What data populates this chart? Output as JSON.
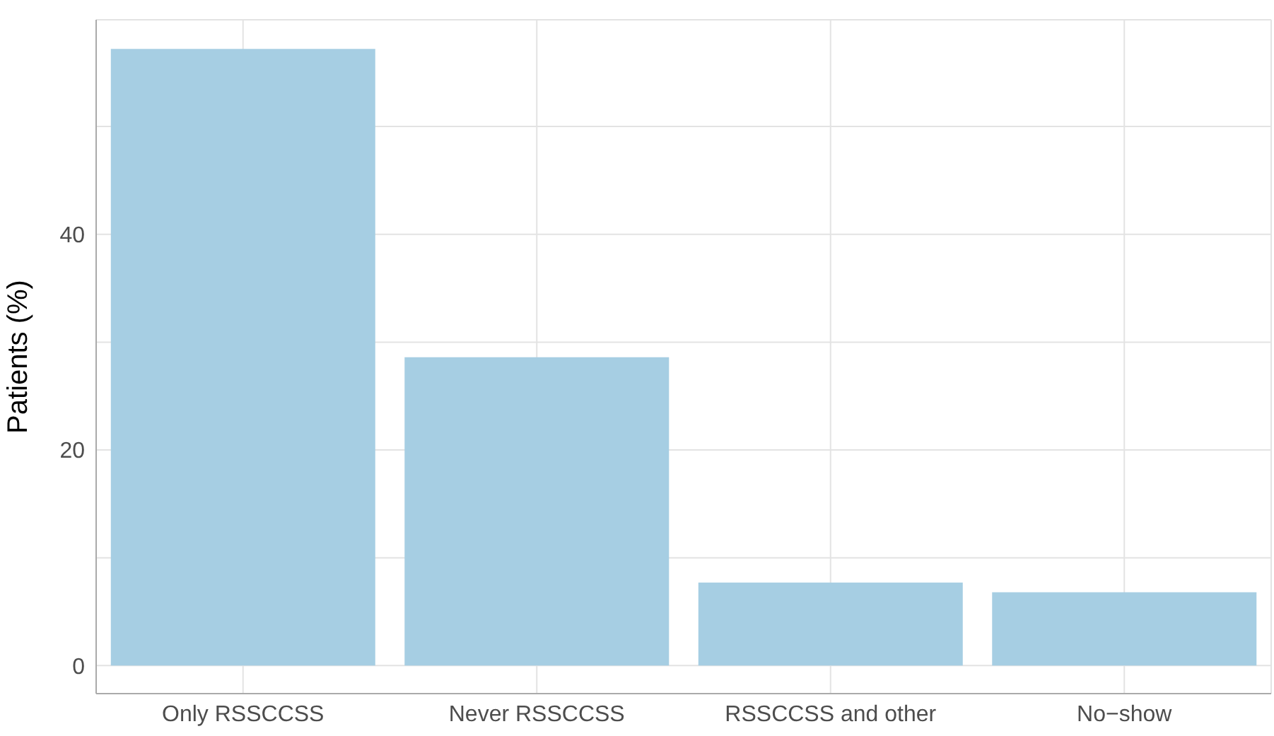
{
  "chart_data": {
    "type": "bar",
    "ylabel": "Patients (%)",
    "categories": [
      "Only RSSCCSS",
      "Never RSSCCSS",
      "RSSCCSS and other",
      "No−show"
    ],
    "values": [
      57.2,
      28.6,
      7.7,
      6.8
    ],
    "color": "#a6cee3",
    "ylim": [
      -2.6,
      59.9
    ],
    "yticks": [
      0,
      {
        "value": 10,
        "label": null
      },
      20,
      {
        "value": 30,
        "label": null
      },
      40,
      {
        "value": 50,
        "label": null
      }
    ],
    "grid": true,
    "legend": false
  }
}
